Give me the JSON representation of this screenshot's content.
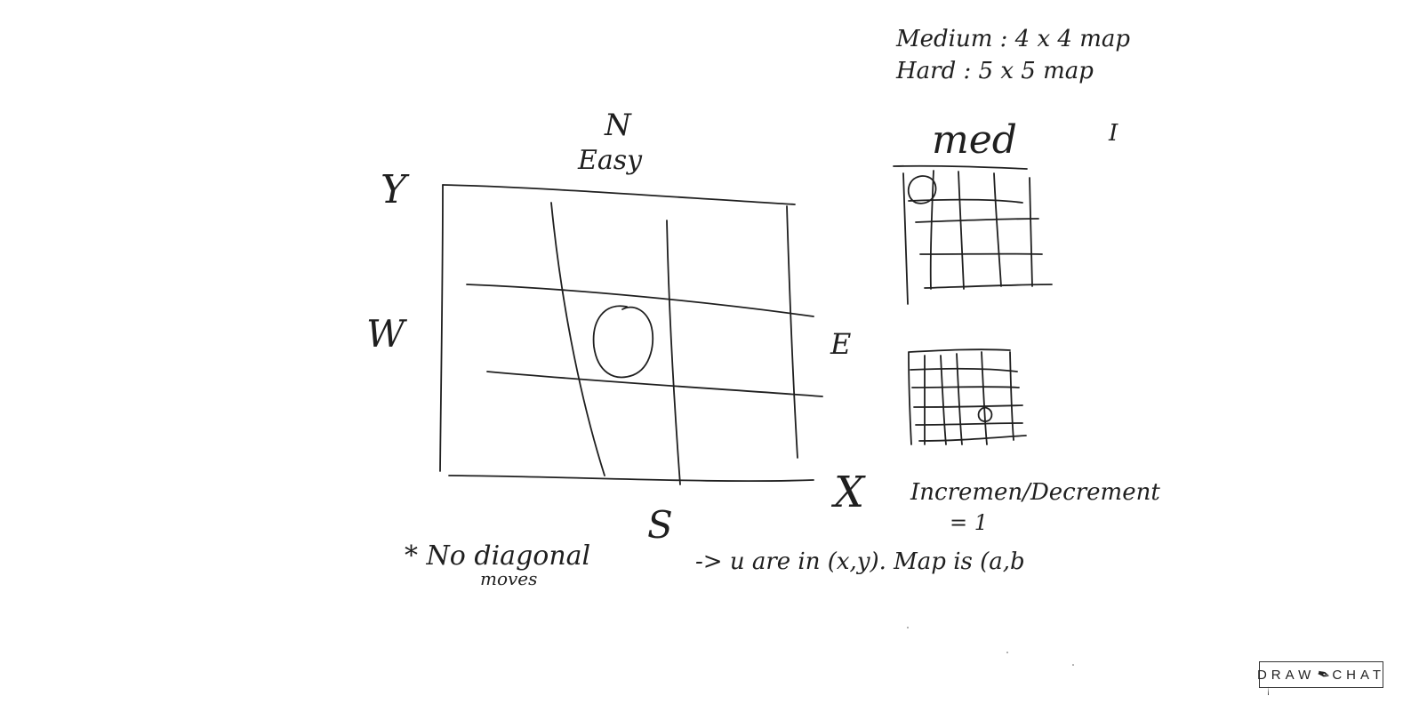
{
  "legend": {
    "medium": "Medium : 4 x 4 map",
    "hard": "Hard   : 5 x 5 map"
  },
  "easy_grid": {
    "title": "Easy",
    "north": "N",
    "south": "S",
    "east": "E",
    "west": "W",
    "y_axis": "Y",
    "x_axis": "X"
  },
  "medium_grid": {
    "title": "med",
    "stray_mark": "I"
  },
  "notes": {
    "no_diagonal_line1": "* No diagonal",
    "no_diagonal_line2": "moves",
    "position": "-> u are in (x,y). Map is (a,b",
    "increment": "Incremen/Decrement",
    "increment_value": "= 1"
  },
  "brand": {
    "logo_left": "DRAW",
    "logo_right": "CHAT",
    "quill_icon": "quill-icon"
  }
}
